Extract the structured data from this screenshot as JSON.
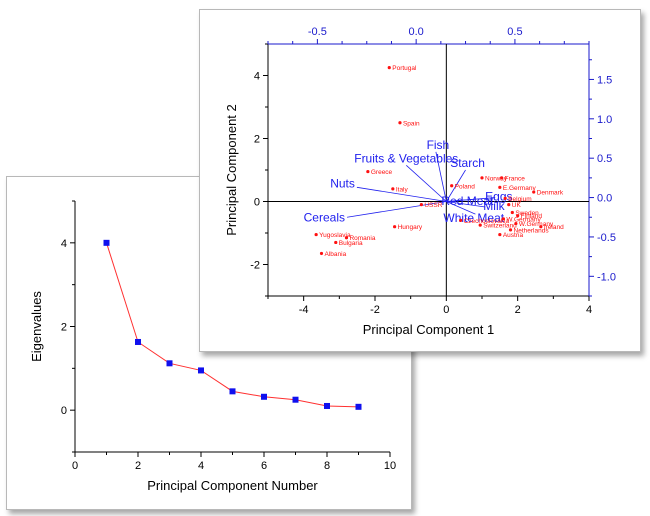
{
  "chart_data": [
    {
      "type": "line",
      "title": "",
      "xlabel": "Principal Component Number",
      "ylabel": "Eigenvalues",
      "xlim": [
        0,
        10
      ],
      "ylim": [
        -1,
        5
      ],
      "xticks": [
        "0",
        "2",
        "4",
        "6",
        "8",
        "10"
      ],
      "yticks": [
        "0",
        "2",
        "4"
      ],
      "series": [
        {
          "name": "Eigenvalues",
          "x": [
            1,
            2,
            3,
            4,
            5,
            6,
            7,
            8,
            9
          ],
          "values": [
            4.0,
            1.63,
            1.12,
            0.95,
            0.45,
            0.32,
            0.25,
            0.1,
            0.08
          ]
        }
      ],
      "colors": {
        "line": "#ff3030",
        "marker": "#1010ee"
      }
    },
    {
      "type": "scatter",
      "title": "",
      "xlabel": "Principal Component 1",
      "ylabel": "Principal Component 2",
      "xlim": [
        -5,
        4
      ],
      "ylim": [
        -3,
        5
      ],
      "xticks": [
        "-4",
        "-2",
        "0",
        "2",
        "4"
      ],
      "yticks": [
        "-2",
        "0",
        "2",
        "4"
      ],
      "top_xlim": [
        -0.75,
        0.875
      ],
      "top_xticks": [
        "-0.5",
        "0.0",
        "0.5"
      ],
      "right_ylim": [
        -1.25,
        1.95
      ],
      "right_yticks": [
        "-1.0",
        "-0.5",
        "0.0",
        "0.5",
        "1.0",
        "1.5"
      ],
      "points": [
        {
          "label": "Portugal",
          "x": -1.6,
          "y": 4.25
        },
        {
          "label": "Spain",
          "x": -1.3,
          "y": 2.5
        },
        {
          "label": "Greece",
          "x": -2.2,
          "y": 0.95
        },
        {
          "label": "Italy",
          "x": -1.5,
          "y": 0.4
        },
        {
          "label": "Poland",
          "x": 0.15,
          "y": 0.5
        },
        {
          "label": "Norway",
          "x": 1.0,
          "y": 0.75
        },
        {
          "label": "France",
          "x": 1.55,
          "y": 0.75
        },
        {
          "label": "E.Germany",
          "x": 1.5,
          "y": 0.45
        },
        {
          "label": "Denmark",
          "x": 2.45,
          "y": 0.3
        },
        {
          "label": "Belgium",
          "x": 1.65,
          "y": 0.1
        },
        {
          "label": "UK",
          "x": 1.75,
          "y": -0.1
        },
        {
          "label": "USSR",
          "x": -0.7,
          "y": -0.1
        },
        {
          "label": "Hungary",
          "x": -1.45,
          "y": -0.8
        },
        {
          "label": "Yugoslavia",
          "x": -3.65,
          "y": -1.05
        },
        {
          "label": "Romania",
          "x": -2.8,
          "y": -1.15
        },
        {
          "label": "Bulgaria",
          "x": -3.1,
          "y": -1.3
        },
        {
          "label": "Albania",
          "x": -3.5,
          "y": -1.65
        },
        {
          "label": "Czechoslovakia",
          "x": 0.4,
          "y": -0.6
        },
        {
          "label": "W.Germany",
          "x": 1.6,
          "y": -0.55
        },
        {
          "label": "Switzerland",
          "x": 0.95,
          "y": -0.75
        },
        {
          "label": "Sweden",
          "x": 1.85,
          "y": -0.35
        },
        {
          "label": "Finland",
          "x": 2.0,
          "y": -0.45
        },
        {
          "label": "Netherlands",
          "x": 1.8,
          "y": -0.9
        },
        {
          "label": "Ireland",
          "x": 2.65,
          "y": -0.8
        },
        {
          "label": "Austria",
          "x": 1.5,
          "y": -1.05
        },
        {
          "label": "W.Germany",
          "x": 1.95,
          "y": -0.7
        }
      ],
      "vectors": [
        {
          "label": "Fish",
          "x": 0.1,
          "y": 0.58
        },
        {
          "label": "Fruits & Vegetables",
          "x": -0.05,
          "y": 0.41
        },
        {
          "label": "Starch",
          "x": 0.25,
          "y": 0.35
        },
        {
          "label": "Nuts",
          "x": -0.3,
          "y": 0.13
        },
        {
          "label": "Cereals",
          "x": -0.35,
          "y": -0.25
        },
        {
          "label": "Eggs",
          "x": 0.4,
          "y": 0.0
        },
        {
          "label": "Red Meat",
          "x": 0.3,
          "y": -0.02
        },
        {
          "label": "Milk",
          "x": 0.35,
          "y": -0.12
        },
        {
          "label": "White Meat",
          "x": 0.3,
          "y": -0.21
        }
      ],
      "colors": {
        "point": "#ff1010",
        "vector": "#2020ee",
        "axis2": "#1a1acc"
      }
    }
  ]
}
